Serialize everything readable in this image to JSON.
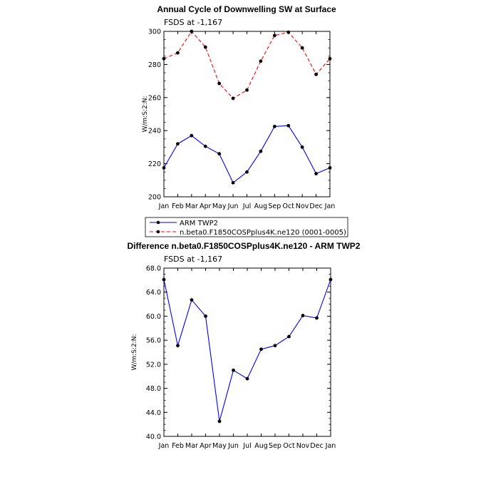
{
  "chart_data": [
    {
      "type": "line",
      "title": "Annual Cycle of Downwelling SW at Surface",
      "subtitle": "FSDS at -1,167",
      "ylabel": "W/m:S:2:N:",
      "xlabel": "",
      "categories": [
        "Jan",
        "Feb",
        "Mar",
        "Apr",
        "May",
        "Jun",
        "Jul",
        "Aug",
        "Sep",
        "Oct",
        "Nov",
        "Dec",
        "Jan"
      ],
      "ylim": [
        200,
        300
      ],
      "yticks": [
        "200",
        "220",
        "240",
        "260",
        "280",
        "300"
      ],
      "series": [
        {
          "name": "ARM TWP2",
          "color": "#0000ff",
          "dash": "solid",
          "values": [
            217.5,
            232,
            237,
            230.5,
            226,
            208.5,
            215,
            227.5,
            242.5,
            243,
            230,
            214,
            217.5
          ]
        },
        {
          "name": "n.beta0.F1850COSPplus4K.ne120 (0001-0005)",
          "color": "#ff0000",
          "dash": "dashed",
          "values": [
            283.5,
            287,
            300,
            290.5,
            268.5,
            259.5,
            264.5,
            282,
            297.5,
            299.5,
            290,
            274,
            283.5
          ]
        }
      ],
      "legend": {
        "placement": "below",
        "entries": [
          "ARM TWP2",
          "n.beta0.F1850COSPplus4K.ne120 (0001-0005)"
        ]
      }
    },
    {
      "type": "line",
      "title": "Difference n.beta0.F1850COSPplus4K.ne120 - ARM TWP2",
      "subtitle": "FSDS at -1,167",
      "ylabel": "W/m:S:2:N:",
      "xlabel": "",
      "categories": [
        "Jan",
        "Feb",
        "Mar",
        "Apr",
        "May",
        "Jun",
        "Jul",
        "Aug",
        "Sep",
        "Oct",
        "Nov",
        "Dec",
        "Jan"
      ],
      "ylim": [
        40,
        68
      ],
      "yticks": [
        "40.0",
        "44.0",
        "48.0",
        "52.0",
        "56.0",
        "60.0",
        "64.0",
        "68.0"
      ],
      "series": [
        {
          "name": "Difference",
          "color": "#0000ff",
          "dash": "solid",
          "values": [
            66.1,
            55.1,
            62.7,
            60.0,
            42.5,
            51.0,
            49.6,
            54.5,
            55.1,
            56.6,
            60.1,
            59.7,
            66.1
          ]
        }
      ]
    }
  ]
}
